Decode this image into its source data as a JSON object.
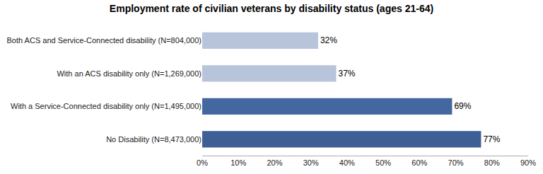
{
  "chart_data": {
    "type": "bar",
    "orientation": "horizontal",
    "title": "Employment rate of civilian veterans by disability status (ages 21-64)",
    "categories": [
      "Both ACS and Service-Connected disability (N=804,000)",
      "With an ACS disability only (N=1,269,000)",
      "With a Service-Connected disability only (N=1,495,000)",
      "No Disability (N=8,473,000)"
    ],
    "values": [
      0.32,
      0.37,
      0.69,
      0.77
    ],
    "value_labels": [
      "32%",
      "37%",
      "69%",
      "77%"
    ],
    "data_labels": true,
    "colors": [
      "#b8c4d9",
      "#b8c4d9",
      "#4567a0",
      "#3d5f96"
    ],
    "xlim": [
      0,
      0.9
    ],
    "xticks": [
      {
        "value": 0.0,
        "label": "0%"
      },
      {
        "value": 0.1,
        "label": "10%"
      },
      {
        "value": 0.2,
        "label": "20%"
      },
      {
        "value": 0.3,
        "label": "30%"
      },
      {
        "value": 0.4,
        "label": "40%"
      },
      {
        "value": 0.5,
        "label": "50%"
      },
      {
        "value": 0.6,
        "label": "60%"
      },
      {
        "value": 0.7,
        "label": "70%"
      },
      {
        "value": 0.8,
        "label": "80%"
      },
      {
        "value": 0.9,
        "label": "90%"
      }
    ],
    "grid": false
  }
}
